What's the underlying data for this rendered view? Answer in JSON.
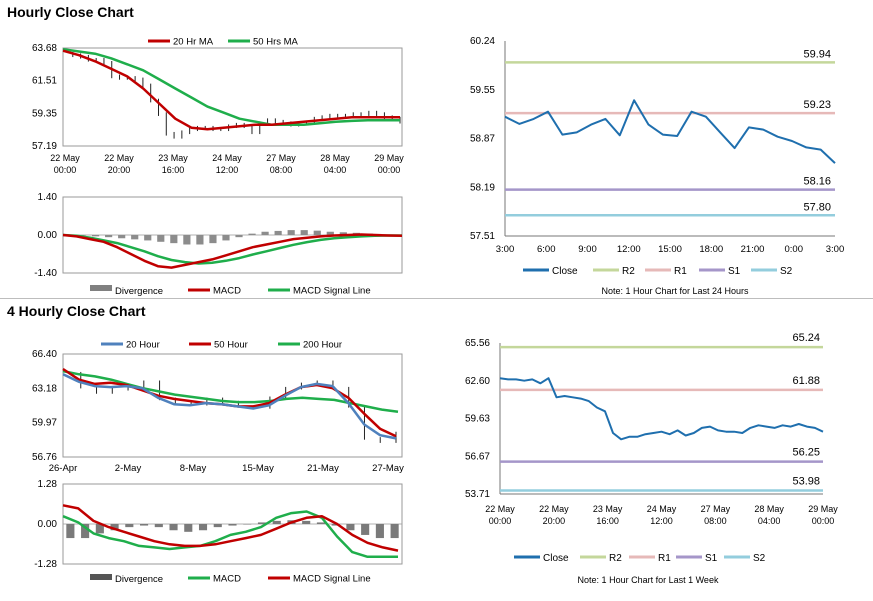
{
  "section1_title": "Hourly Close Chart",
  "section2_title": "4 Hourly Close Chart",
  "colors": {
    "red": "#c00000",
    "green": "#1fae4b",
    "blue": "#4f81bd",
    "close": "#1f6fae",
    "gray": "#808080",
    "black": "#000000",
    "r2": "#c4d79b",
    "r1": "#e6b9b8",
    "s1": "#a596c9",
    "s2": "#93cddd"
  },
  "chart_data": [
    {
      "id": "hourly-price",
      "type": "line",
      "title": "Hourly Close Chart",
      "legend": [
        "20 Hr MA",
        "50 Hrs MA"
      ],
      "yticks": [
        "63.68",
        "61.51",
        "59.35",
        "57.19"
      ],
      "ylim": [
        57.19,
        63.68
      ],
      "xticks": [
        [
          "22 May",
          "00:00"
        ],
        [
          "22 May",
          "20:00"
        ],
        [
          "23 May",
          "16:00"
        ],
        [
          "24 May",
          "12:00"
        ],
        [
          "27 May",
          "08:00"
        ],
        [
          "28 May",
          "04:00"
        ],
        [
          "29 May",
          "00:00"
        ]
      ],
      "ma20": [
        63.5,
        63.2,
        62.8,
        62.3,
        61.8,
        61.0,
        60.0,
        59.0,
        58.4,
        58.3,
        58.4,
        58.5,
        58.6,
        58.6,
        58.7,
        58.8,
        58.9,
        59.0,
        59.1,
        59.1,
        59.1,
        59.1
      ],
      "ma50": [
        63.6,
        63.45,
        63.3,
        63.0,
        62.6,
        62.2,
        61.6,
        61.0,
        60.4,
        59.8,
        59.4,
        59.0,
        58.8,
        58.6,
        58.6,
        58.6,
        58.7,
        58.8,
        58.85,
        58.9,
        58.9,
        58.9
      ],
      "price": [
        63.3,
        63.2,
        63.1,
        62.9,
        62.9,
        62.7,
        61.8,
        61.7,
        61.7,
        61.6,
        61.2,
        60.2,
        59.3,
        58.0,
        57.8,
        58.1,
        58.3,
        58.4,
        58.4,
        58.3,
        58.3,
        58.5,
        58.6,
        58.5,
        58.1,
        58.7,
        58.9,
        58.8,
        58.7,
        58.6,
        58.7,
        58.7,
        59.0,
        59.1,
        59.2,
        59.2,
        59.2,
        59.3,
        59.3,
        59.4,
        59.3,
        59.1,
        59.0,
        58.8
      ]
    },
    {
      "id": "hourly-macd",
      "type": "line",
      "legend": [
        "Divergence",
        "MACD",
        "MACD Signal Line"
      ],
      "yticks": [
        "1.40",
        "0.00",
        "-1.40"
      ],
      "ylim": [
        -1.4,
        1.4
      ],
      "divergence": [
        0.0,
        -0.02,
        -0.05,
        -0.08,
        -0.12,
        -0.16,
        -0.2,
        -0.25,
        -0.3,
        -0.35,
        -0.35,
        -0.3,
        -0.2,
        -0.08,
        0.05,
        0.12,
        0.15,
        0.18,
        0.18,
        0.16,
        0.12,
        0.1,
        0.08,
        0.05,
        0.02,
        0.0
      ],
      "macd": [
        0.0,
        -0.05,
        -0.15,
        -0.25,
        -0.45,
        -0.7,
        -0.95,
        -1.15,
        -1.2,
        -1.1,
        -1.0,
        -0.9,
        -0.75,
        -0.6,
        -0.45,
        -0.35,
        -0.25,
        -0.15,
        -0.1,
        -0.05,
        -0.02,
        0.0,
        0.02,
        0.0,
        -0.02,
        -0.03
      ],
      "signal": [
        0.0,
        -0.03,
        -0.1,
        -0.2,
        -0.3,
        -0.45,
        -0.6,
        -0.78,
        -0.92,
        -1.0,
        -1.05,
        -1.02,
        -0.95,
        -0.85,
        -0.72,
        -0.6,
        -0.48,
        -0.36,
        -0.26,
        -0.18,
        -0.12,
        -0.08,
        -0.05,
        -0.03,
        -0.02,
        -0.02
      ]
    },
    {
      "id": "hourly-close-24h",
      "type": "line",
      "yticks": [
        "60.24",
        "59.55",
        "58.87",
        "58.19",
        "57.51"
      ],
      "ylim": [
        57.51,
        60.24
      ],
      "xticks": [
        "3:00",
        "6:00",
        "9:00",
        "12:00",
        "15:00",
        "18:00",
        "21:00",
        "0:00",
        "3:00"
      ],
      "levels": [
        {
          "name": "R2",
          "value": 59.94,
          "label": "59.94"
        },
        {
          "name": "R1",
          "value": 59.23,
          "label": "59.23"
        },
        {
          "name": "S1",
          "value": 58.16,
          "label": "58.16"
        },
        {
          "name": "S2",
          "value": 57.8,
          "label": "57.80"
        }
      ],
      "close": [
        59.18,
        59.08,
        59.15,
        59.25,
        58.93,
        58.96,
        59.07,
        59.15,
        58.92,
        59.41,
        59.07,
        58.93,
        58.91,
        59.25,
        59.18,
        58.96,
        58.74,
        59.03,
        59.0,
        58.9,
        58.84,
        58.75,
        58.72,
        58.53
      ],
      "legend": [
        "Close",
        "R2",
        "R1",
        "S1",
        "S2"
      ],
      "note": "Note: 1 Hour Chart for Last 24 Hours"
    },
    {
      "id": "four-hourly-price",
      "type": "line",
      "title": "4 Hourly Close Chart",
      "legend": [
        "20 Hour",
        "50 Hour",
        "200 Hour"
      ],
      "yticks": [
        "66.40",
        "63.18",
        "59.97",
        "56.76"
      ],
      "ylim": [
        56.76,
        66.4
      ],
      "xticks": [
        "26-Apr",
        "2-May",
        "8-May",
        "15-May",
        "21-May",
        "27-May"
      ],
      "ma20": [
        64.5,
        63.8,
        63.4,
        63.3,
        63.4,
        63.2,
        62.3,
        61.7,
        61.6,
        61.8,
        61.7,
        61.5,
        61.3,
        61.6,
        62.5,
        63.3,
        63.6,
        63.4,
        61.8,
        59.8,
        58.8,
        58.5
      ],
      "ma50": [
        65.0,
        64.0,
        63.6,
        63.7,
        63.5,
        63.0,
        62.5,
        62.2,
        62.0,
        61.8,
        61.7,
        61.5,
        61.5,
        61.8,
        62.6,
        63.3,
        63.5,
        63.2,
        62.3,
        60.8,
        59.4,
        58.7
      ],
      "ma200": [
        64.8,
        64.5,
        64.3,
        64.0,
        63.6,
        63.2,
        62.9,
        62.6,
        62.4,
        62.2,
        62.0,
        61.9,
        61.9,
        62.0,
        62.2,
        62.3,
        62.2,
        62.1,
        61.8,
        61.5,
        61.2,
        61.0
      ],
      "price": [
        64.6,
        63.3,
        62.8,
        63.1,
        63.2,
        63.8,
        62.2,
        61.8,
        61.7,
        62.2,
        61.9,
        61.5,
        61.4,
        62.3,
        63.2,
        63.6,
        63.8,
        63.2,
        61.5,
        58.5,
        58.2,
        59.0
      ]
    },
    {
      "id": "four-hourly-macd",
      "type": "line",
      "legend": [
        "Divergence",
        "MACD",
        "MACD Signal Line"
      ],
      "yticks": [
        "1.28",
        "0.00",
        "-1.28"
      ],
      "ylim": [
        -1.28,
        1.28
      ],
      "divergence": [
        -0.45,
        -0.45,
        -0.3,
        -0.2,
        -0.1,
        -0.05,
        -0.1,
        -0.2,
        -0.25,
        -0.2,
        -0.1,
        -0.05,
        0.0,
        0.05,
        0.1,
        0.12,
        0.1,
        0.05,
        -0.05,
        -0.2,
        -0.35,
        -0.45,
        -0.45
      ],
      "macd": [
        0.25,
        0.05,
        -0.3,
        -0.45,
        -0.55,
        -0.7,
        -0.75,
        -0.8,
        -0.75,
        -0.7,
        -0.55,
        -0.35,
        -0.25,
        -0.1,
        0.2,
        0.35,
        0.4,
        0.2,
        -0.4,
        -0.9,
        -1.05,
        -1.05,
        -1.05
      ],
      "signal": [
        0.6,
        0.5,
        0.1,
        -0.1,
        -0.25,
        -0.4,
        -0.55,
        -0.65,
        -0.7,
        -0.7,
        -0.65,
        -0.55,
        -0.45,
        -0.35,
        -0.15,
        0.05,
        0.2,
        0.25,
        0.0,
        -0.35,
        -0.6,
        -0.75,
        -0.85
      ]
    },
    {
      "id": "hourly-close-1w",
      "type": "line",
      "yticks": [
        "65.56",
        "62.60",
        "59.63",
        "56.67",
        "53.71"
      ],
      "ylim": [
        53.71,
        65.56
      ],
      "xticks": [
        [
          "22 May",
          "00:00"
        ],
        [
          "22 May",
          "20:00"
        ],
        [
          "23 May",
          "16:00"
        ],
        [
          "24 May",
          "12:00"
        ],
        [
          "27 May",
          "08:00"
        ],
        [
          "28 May",
          "04:00"
        ],
        [
          "29 May",
          "00:00"
        ]
      ],
      "levels": [
        {
          "name": "R2",
          "value": 65.24,
          "label": "65.24"
        },
        {
          "name": "R1",
          "value": 61.88,
          "label": "61.88"
        },
        {
          "name": "S1",
          "value": 56.25,
          "label": "56.25"
        },
        {
          "name": "S2",
          "value": 53.98,
          "label": "53.98"
        }
      ],
      "close": [
        62.8,
        62.7,
        62.7,
        62.6,
        62.7,
        62.4,
        62.8,
        61.3,
        61.4,
        61.3,
        61.2,
        61.0,
        60.5,
        60.2,
        58.5,
        58.0,
        58.2,
        58.2,
        58.4,
        58.5,
        58.6,
        58.4,
        58.7,
        58.3,
        58.5,
        58.9,
        59.0,
        58.7,
        58.6,
        58.6,
        58.5,
        58.9,
        59.1,
        59.0,
        58.9,
        59.1,
        59.0,
        59.2,
        59.0,
        58.9,
        58.6
      ],
      "legend": [
        "Close",
        "R2",
        "R1",
        "S1",
        "S2"
      ],
      "note": "Note: 1 Hour Chart for Last 1 Week"
    }
  ]
}
